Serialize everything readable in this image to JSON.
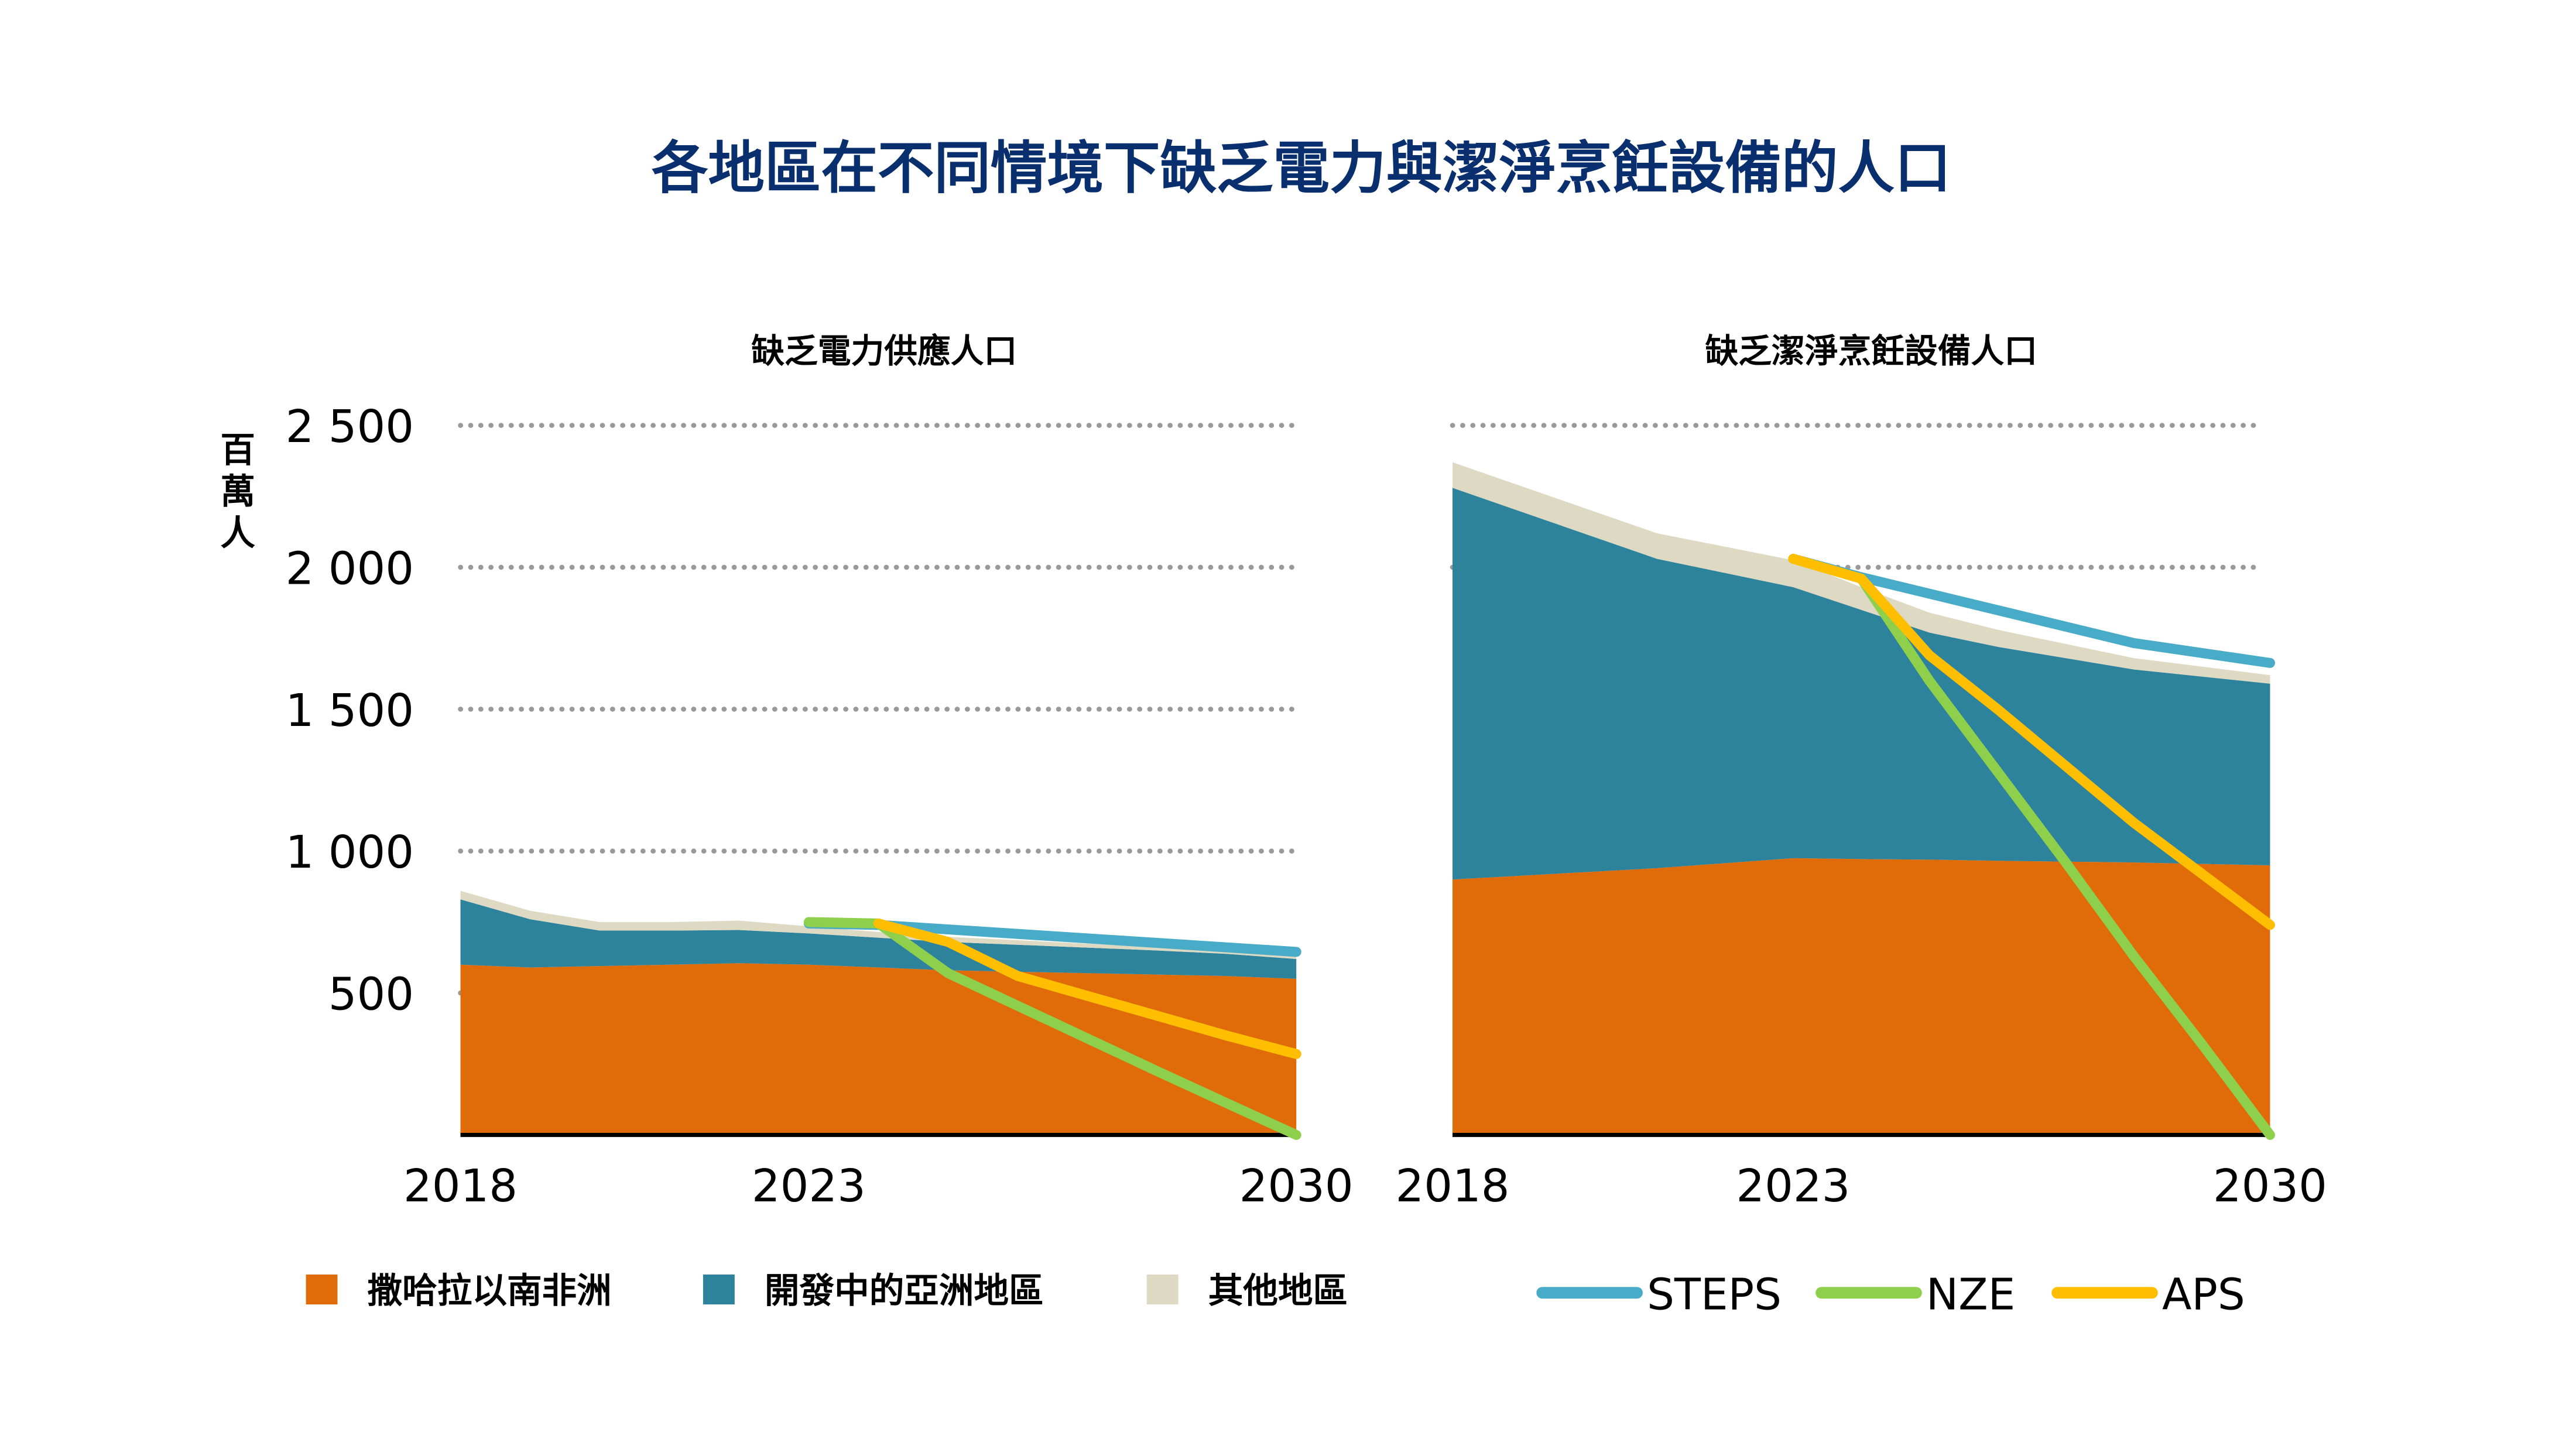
{
  "title": "各地區在不同情境下缺乏電力與潔淨烹飪設備的人口",
  "y_unit": "百萬人",
  "colors": {
    "ssa": "#e06b09",
    "asia": "#2e839c",
    "other": "#ddd9c3",
    "STEPS": "#48abc7",
    "NZE": "#8ecf4c",
    "APS": "#ffbf00",
    "title": "#0a2f6e"
  },
  "legend": {
    "areas": [
      {
        "key": "ssa",
        "label": "撒哈拉以南非洲"
      },
      {
        "key": "asia",
        "label": "開發中的亞洲地區"
      },
      {
        "key": "other",
        "label": "其他地區"
      }
    ],
    "lines": [
      {
        "key": "STEPS",
        "label": "STEPS"
      },
      {
        "key": "NZE",
        "label": "NZE"
      },
      {
        "key": "APS",
        "label": "APS"
      }
    ]
  },
  "chart_data": [
    {
      "type": "area",
      "title": "缺乏電力供應人口",
      "ylabel": "百萬人",
      "ylim": [
        0,
        2500
      ],
      "yticks": [
        500,
        1000,
        1500,
        2000,
        2500
      ],
      "ytick_labels": [
        "500",
        "1 000",
        "1 500",
        "2 000",
        "2 500"
      ],
      "xticks": [
        2018,
        2023,
        2030
      ],
      "grid": true,
      "x": [
        2018,
        2019,
        2020,
        2021,
        2022,
        2023,
        2024,
        2025,
        2026,
        2027,
        2028,
        2029,
        2030
      ],
      "stacked_series": [
        {
          "key": "ssa",
          "name": "撒哈拉以南非洲",
          "values": [
            600,
            590,
            595,
            600,
            605,
            600,
            590,
            580,
            575,
            570,
            565,
            560,
            550
          ]
        },
        {
          "key": "asia",
          "name": "開發中的亞洲地區",
          "values": [
            230,
            170,
            125,
            120,
            117,
            110,
            105,
            100,
            95,
            90,
            85,
            78,
            70
          ]
        },
        {
          "key": "other",
          "name": "其他地區",
          "values": [
            30,
            30,
            30,
            30,
            33,
            25,
            20,
            18,
            16,
            14,
            13,
            12,
            10
          ]
        }
      ],
      "lines": [
        {
          "key": "STEPS",
          "name": "STEPS",
          "x": [
            2023,
            2024,
            2030
          ],
          "values": [
            745,
            740,
            645
          ]
        },
        {
          "key": "NZE",
          "name": "NZE",
          "x": [
            2023,
            2024,
            2025,
            2026,
            2027,
            2028,
            2029,
            2030
          ],
          "values": [
            750,
            745,
            570,
            455,
            340,
            225,
            112,
            0
          ]
        },
        {
          "key": "APS",
          "name": "APS",
          "x": [
            2024,
            2025,
            2026,
            2027,
            2028,
            2029,
            2030
          ],
          "values": [
            745,
            680,
            560,
            490,
            420,
            350,
            285
          ]
        }
      ]
    },
    {
      "type": "area",
      "title": "缺乏潔淨烹飪設備人口",
      "ylim": [
        0,
        2500
      ],
      "xticks": [
        2018,
        2023,
        2030
      ],
      "grid": true,
      "x": [
        2018,
        2021,
        2023,
        2024,
        2025,
        2026,
        2027,
        2028,
        2030
      ],
      "stacked_series": [
        {
          "key": "ssa",
          "name": "撒哈拉以南非洲",
          "values": [
            900,
            940,
            975,
            972,
            970,
            966,
            963,
            960,
            950
          ]
        },
        {
          "key": "asia",
          "name": "開發中的亞洲地區",
          "values": [
            1380,
            1090,
            955,
            878,
            800,
            754,
            717,
            680,
            640
          ]
        },
        {
          "key": "other",
          "name": "其他地區",
          "values": [
            90,
            90,
            95,
            80,
            70,
            60,
            50,
            40,
            30
          ]
        }
      ],
      "lines": [
        {
          "key": "STEPS",
          "name": "STEPS",
          "x": [
            2023,
            2024,
            2028,
            2030
          ],
          "values": [
            2030,
            1965,
            1733,
            1663
          ]
        },
        {
          "key": "NZE",
          "name": "NZE",
          "x": [
            2024,
            2025,
            2026,
            2027,
            2028,
            2029,
            2030
          ],
          "values": [
            1960,
            1600,
            1280,
            960,
            630,
            320,
            0
          ]
        },
        {
          "key": "APS",
          "name": "APS",
          "x": [
            2023,
            2024,
            2025,
            2026,
            2027,
            2028,
            2029,
            2030
          ],
          "values": [
            2030,
            1960,
            1690,
            1500,
            1300,
            1100,
            920,
            740
          ]
        }
      ]
    }
  ]
}
